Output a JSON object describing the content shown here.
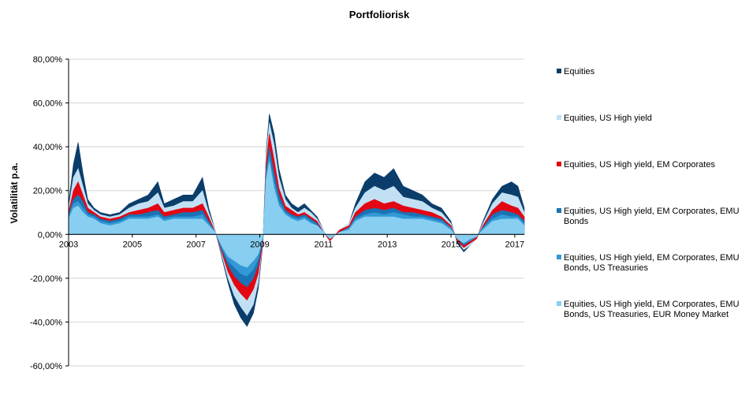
{
  "chart_data": {
    "type": "area",
    "title": "Portfoliorisk",
    "ylabel": "Volatilität p.a.",
    "xlabel": "",
    "x_ticks": [
      "2003",
      "2005",
      "2007",
      "2009",
      "2011",
      "2013",
      "2015",
      "2017"
    ],
    "x_range": [
      2003.0,
      2017.3
    ],
    "y_ticks": [
      "80,00%",
      "60,00%",
      "40,00%",
      "20,00%",
      "0,00%",
      "-20,00%",
      "-40,00%",
      "-60,00%"
    ],
    "y_tick_values": [
      80,
      60,
      40,
      20,
      0,
      -20,
      -40,
      -60
    ],
    "ylim": [
      -60,
      80
    ],
    "grid": "horizontal",
    "legend_position": "right",
    "x": [
      2003.0,
      2003.15,
      2003.3,
      2003.45,
      2003.6,
      2003.8,
      2004.0,
      2004.3,
      2004.6,
      2004.9,
      2005.2,
      2005.5,
      2005.8,
      2006.0,
      2006.3,
      2006.6,
      2006.9,
      2007.2,
      2007.4,
      2007.6,
      2007.8,
      2008.0,
      2008.2,
      2008.4,
      2008.6,
      2008.8,
      2008.95,
      2009.1,
      2009.2,
      2009.3,
      2009.45,
      2009.6,
      2009.8,
      2010.0,
      2010.2,
      2010.4,
      2010.6,
      2010.8,
      2011.0,
      2011.2,
      2011.5,
      2011.8,
      2012.0,
      2012.3,
      2012.6,
      2012.9,
      2013.2,
      2013.5,
      2013.8,
      2014.1,
      2014.4,
      2014.7,
      2015.0,
      2015.2,
      2015.4,
      2015.6,
      2015.8,
      2016.0,
      2016.3,
      2016.6,
      2016.9,
      2017.1,
      2017.3
    ],
    "series": [
      {
        "name": "Equities",
        "color": "#0b3d6b",
        "values": [
          14,
          32,
          42,
          28,
          16,
          12,
          10,
          9,
          10,
          14,
          16,
          18,
          24,
          14,
          16,
          18,
          18,
          26,
          12,
          2,
          -10,
          -22,
          -32,
          -38,
          -42,
          -36,
          -25,
          -4,
          38,
          55,
          46,
          30,
          18,
          14,
          12,
          14,
          11,
          8,
          2,
          -3,
          2,
          5,
          14,
          24,
          28,
          26,
          30,
          22,
          20,
          18,
          14,
          12,
          6,
          -4,
          -8,
          -5,
          -2,
          6,
          16,
          22,
          24,
          22,
          12
        ]
      },
      {
        "name": "Equities, US High yield",
        "color": "#c2e0f4",
        "values": [
          12,
          26,
          30,
          22,
          14,
          11,
          9,
          8,
          9,
          12,
          14,
          15,
          19,
          12,
          13,
          15,
          15,
          20,
          10,
          2,
          -9,
          -20,
          -28,
          -33,
          -37,
          -32,
          -22,
          -3,
          36,
          51,
          41,
          26,
          16,
          12,
          10,
          12,
          10,
          7,
          2,
          -3,
          2,
          5,
          12,
          19,
          22,
          20,
          22,
          17,
          16,
          15,
          12,
          10,
          5,
          -3,
          -7,
          -5,
          -2,
          5,
          14,
          19,
          18,
          17,
          10
        ]
      },
      {
        "name": "Equities, US High yield, EM Corporates",
        "color": "#e30613",
        "values": [
          10,
          20,
          24,
          18,
          12,
          10,
          8,
          7,
          8,
          10,
          11,
          12,
          14,
          10,
          11,
          12,
          12,
          14,
          8,
          1,
          -8,
          -17,
          -23,
          -27,
          -30,
          -25,
          -18,
          -3,
          33,
          46,
          34,
          21,
          13,
          11,
          9,
          10,
          8,
          6,
          1,
          -3,
          2,
          4,
          10,
          14,
          16,
          14,
          15,
          13,
          12,
          11,
          10,
          8,
          4,
          -3,
          -6,
          -4,
          -2,
          4,
          11,
          15,
          13,
          12,
          8
        ]
      },
      {
        "name": "Equities, US High yield, EM Corporates, EMU Bonds",
        "color": "#1a73b5",
        "values": [
          9,
          16,
          18,
          15,
          10,
          9,
          7,
          6,
          7,
          9,
          9,
          10,
          11,
          8,
          9,
          10,
          10,
          11,
          6,
          1,
          -7,
          -14,
          -19,
          -22,
          -24,
          -20,
          -14,
          -2,
          29,
          40,
          28,
          18,
          11,
          9,
          8,
          9,
          7,
          5,
          1,
          -2,
          1,
          3,
          8,
          11,
          12,
          11,
          12,
          10,
          10,
          9,
          8,
          7,
          3,
          -2,
          -5,
          -3,
          -1,
          3,
          9,
          11,
          10,
          9,
          6
        ]
      },
      {
        "name": "Equities, US High yield, EM Corporates, EMU Bonds, US Treasuries",
        "color": "#3399d6",
        "values": [
          8,
          14,
          15,
          12,
          9,
          8,
          6,
          5,
          6,
          8,
          8,
          8,
          9,
          7,
          8,
          8,
          8,
          9,
          5,
          1,
          -6,
          -12,
          -15,
          -18,
          -19,
          -16,
          -11,
          -2,
          27,
          36,
          24,
          15,
          10,
          8,
          7,
          8,
          6,
          4,
          1,
          -2,
          1,
          3,
          7,
          9,
          10,
          9,
          10,
          9,
          8,
          8,
          7,
          6,
          3,
          -2,
          -4,
          -3,
          -1,
          3,
          7,
          9,
          8,
          8,
          5
        ]
      },
      {
        "name": "Equities, US High yield, EM Corporates, EMU Bonds, US Treasuries, EUR Money Market",
        "color": "#87cef0",
        "values": [
          7,
          12,
          13,
          10,
          8,
          7,
          5,
          4,
          5,
          7,
          7,
          7,
          8,
          6,
          7,
          7,
          7,
          7,
          4,
          1,
          -5,
          -10,
          -12,
          -14,
          -15,
          -12,
          -9,
          -1,
          25,
          33,
          21,
          13,
          9,
          7,
          6,
          7,
          5,
          4,
          1,
          -2,
          1,
          2,
          6,
          8,
          8,
          8,
          8,
          7,
          7,
          7,
          6,
          5,
          2,
          -2,
          -4,
          -2,
          -1,
          2,
          6,
          7,
          7,
          7,
          4
        ]
      }
    ],
    "legend": [
      {
        "color": "#0b3d6b",
        "lines": [
          "Equities"
        ]
      },
      {
        "color": "#c2e0f4",
        "lines": [
          "Equities, US High yield"
        ]
      },
      {
        "color": "#e30613",
        "lines": [
          "Equities, US High yield, EM Corporates"
        ]
      },
      {
        "color": "#1a73b5",
        "lines": [
          "Equities, US High yield, EM Corporates, EMU",
          "Bonds"
        ]
      },
      {
        "color": "#3399d6",
        "lines": [
          "Equities, US High yield, EM Corporates, EMU",
          "Bonds, US Treasuries"
        ]
      },
      {
        "color": "#87cef0",
        "lines": [
          "Equities, US High yield, EM Corporates, EMU",
          "Bonds, US Treasuries, EUR Money Market"
        ]
      }
    ]
  }
}
